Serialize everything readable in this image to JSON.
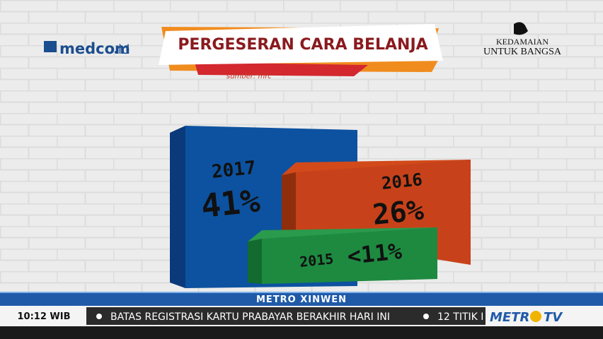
{
  "header": {
    "logo": "medcom",
    "logo_suffix": "id",
    "title": "PERGESERAN CARA BELANJA",
    "source": "sumber: mrc",
    "slogan": [
      "KEDAMAIAN",
      "UNTUK BANGSA"
    ]
  },
  "boxes": [
    {
      "year": "2017",
      "value": "41%"
    },
    {
      "year": "2016",
      "value": "26%"
    },
    {
      "year": "2015",
      "value": "<11%"
    }
  ],
  "ticker": {
    "program": "METRO XINWEN",
    "time": "10:12 WIB",
    "headlines": [
      "BATAS REGISTRASI KARTU PRABAYAR BERAKHIR HARI INI",
      "12 TITIK I"
    ],
    "channel": [
      "METR",
      "TV"
    ]
  }
}
